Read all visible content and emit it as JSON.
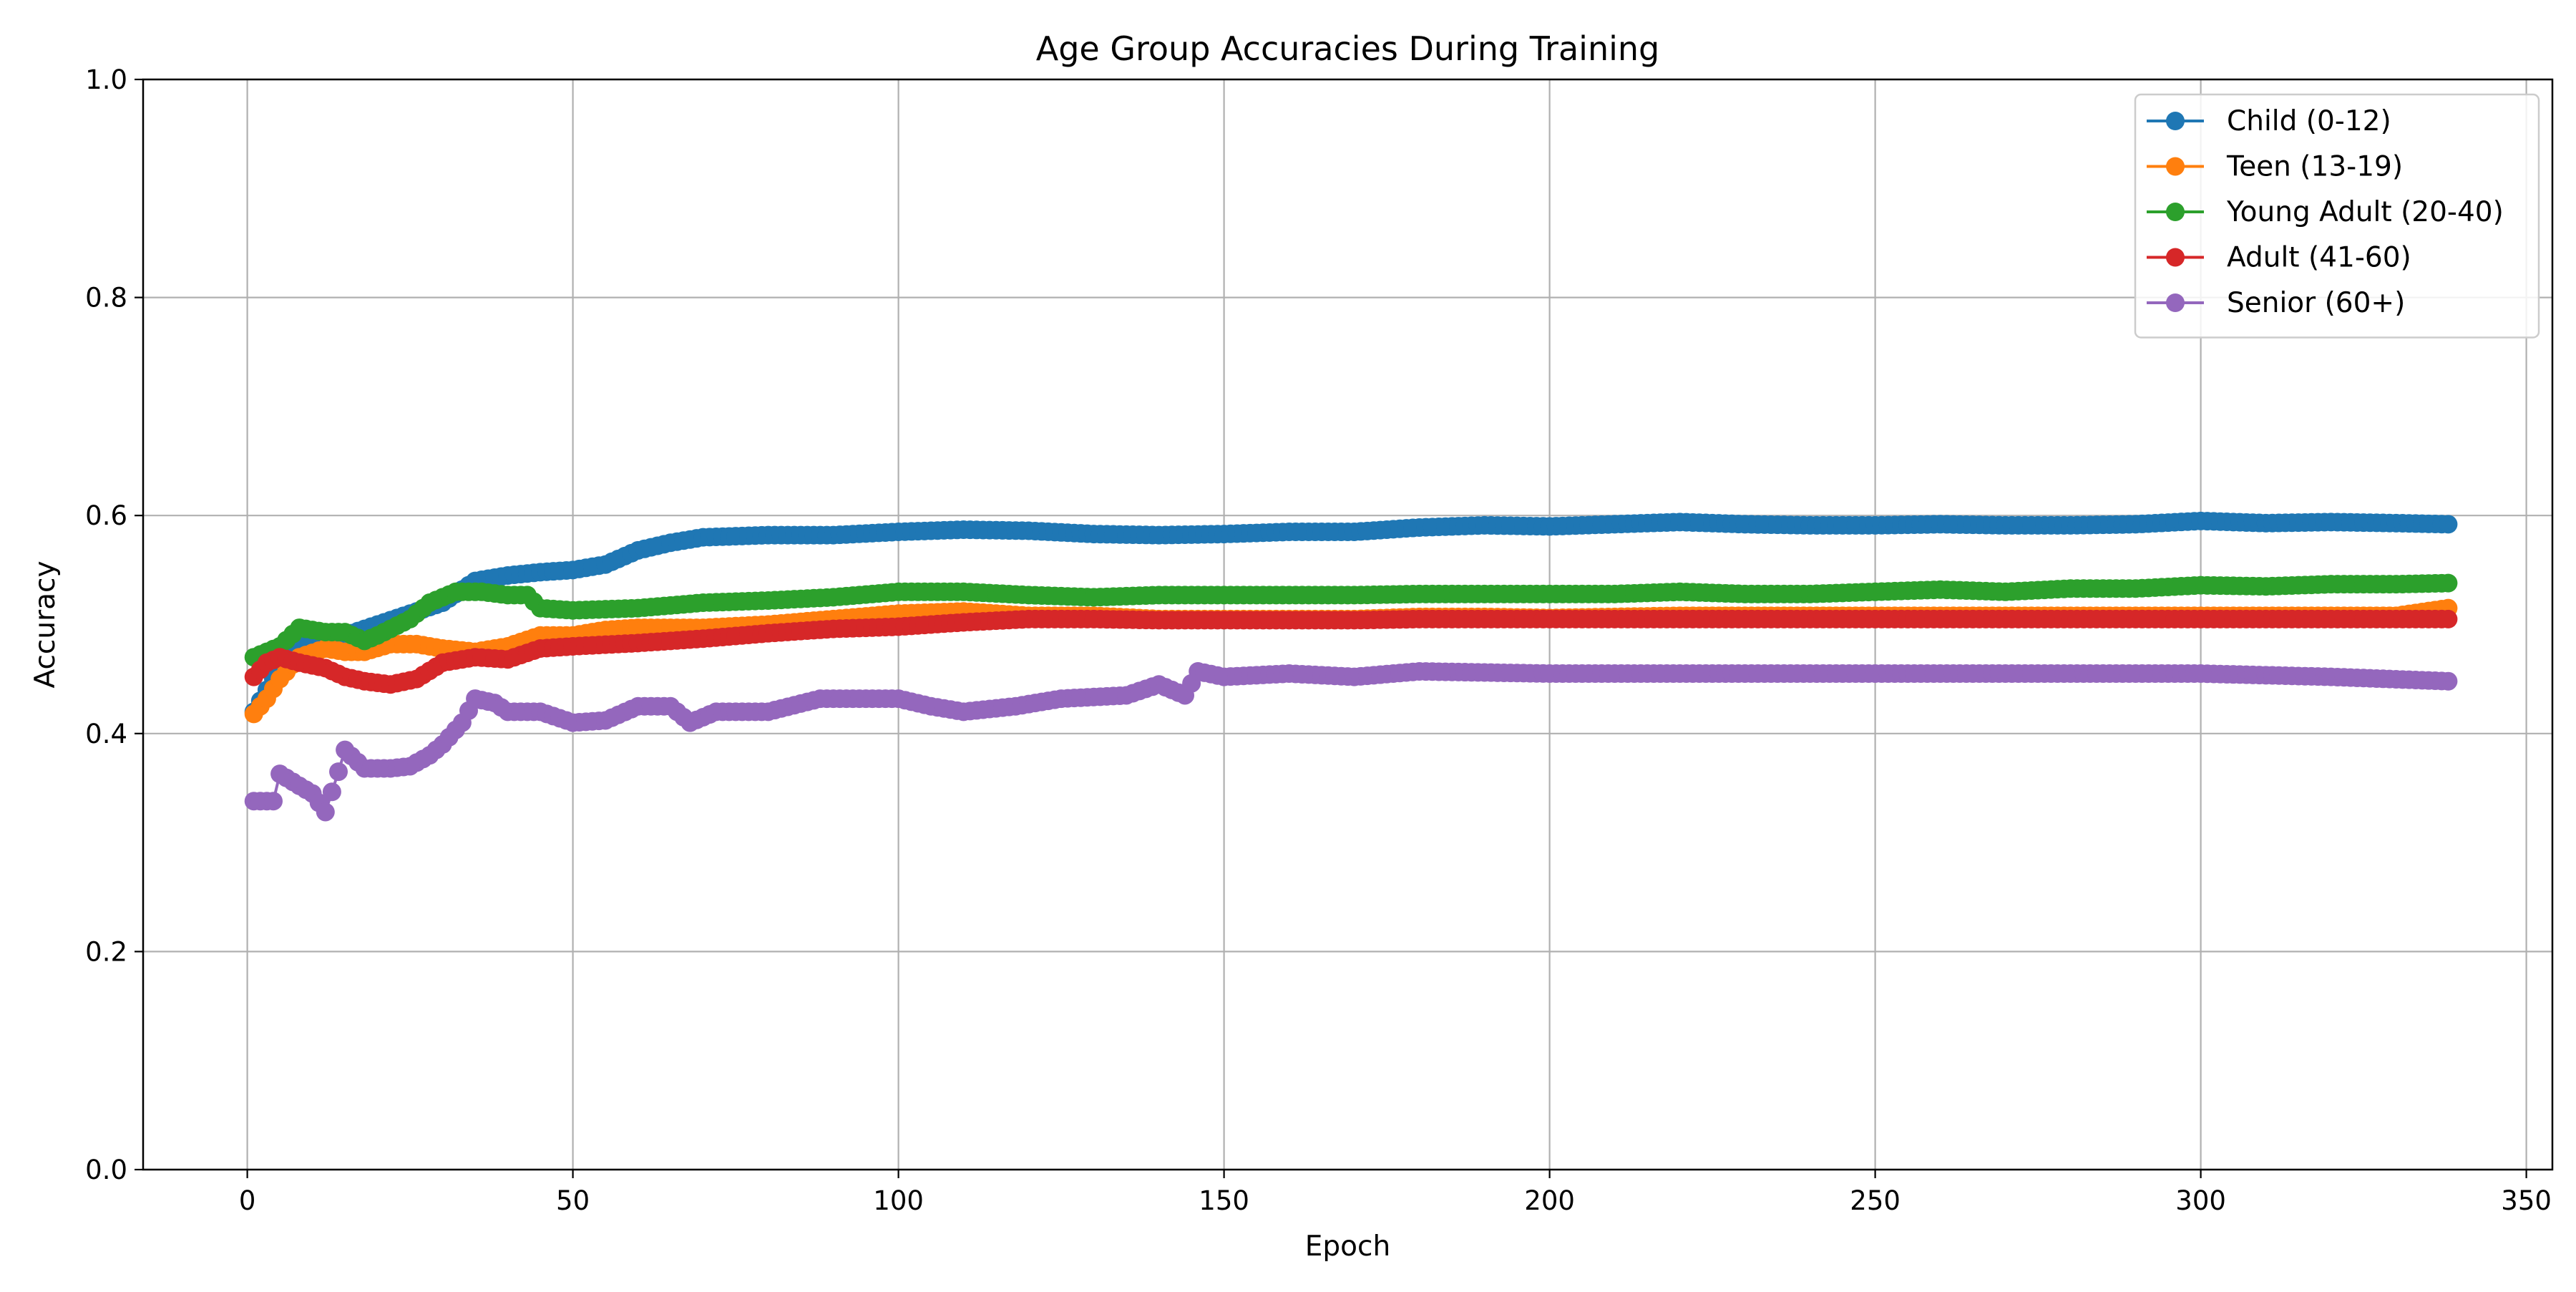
{
  "chart_data": {
    "type": "line",
    "title": "Age Group Accuracies During Training",
    "xlabel": "Epoch",
    "ylabel": "Accuracy",
    "xlim": [
      -16,
      354
    ],
    "ylim": [
      0.0,
      1.0
    ],
    "xticks": [
      0,
      50,
      100,
      150,
      200,
      250,
      300,
      350
    ],
    "yticks": [
      0.0,
      0.2,
      0.4,
      0.6,
      0.8,
      1.0
    ],
    "xtick_labels": [
      "0",
      "50",
      "100",
      "150",
      "200",
      "250",
      "300",
      "350"
    ],
    "ytick_labels": [
      "0.0",
      "0.2",
      "0.4",
      "0.6",
      "0.8",
      "1.0"
    ],
    "grid": true,
    "legend_position": "top-right",
    "markers": true,
    "series": [
      {
        "name": "Child (0-12)",
        "color": "#1f77b4",
        "points": [
          [
            1,
            0.42
          ],
          [
            5,
            0.46
          ],
          [
            10,
            0.49
          ],
          [
            15,
            0.49
          ],
          [
            20,
            0.5
          ],
          [
            25,
            0.51
          ],
          [
            30,
            0.52
          ],
          [
            35,
            0.54
          ],
          [
            40,
            0.545
          ],
          [
            45,
            0.548
          ],
          [
            50,
            0.55
          ],
          [
            55,
            0.555
          ],
          [
            60,
            0.568
          ],
          [
            65,
            0.575
          ],
          [
            70,
            0.58
          ],
          [
            80,
            0.582
          ],
          [
            90,
            0.582
          ],
          [
            100,
            0.585
          ],
          [
            110,
            0.587
          ],
          [
            120,
            0.586
          ],
          [
            130,
            0.583
          ],
          [
            140,
            0.582
          ],
          [
            150,
            0.583
          ],
          [
            160,
            0.585
          ],
          [
            170,
            0.585
          ],
          [
            180,
            0.589
          ],
          [
            190,
            0.591
          ],
          [
            200,
            0.59
          ],
          [
            210,
            0.592
          ],
          [
            220,
            0.594
          ],
          [
            230,
            0.592
          ],
          [
            240,
            0.591
          ],
          [
            250,
            0.591
          ],
          [
            260,
            0.592
          ],
          [
            270,
            0.591
          ],
          [
            280,
            0.591
          ],
          [
            290,
            0.592
          ],
          [
            300,
            0.595
          ],
          [
            310,
            0.593
          ],
          [
            320,
            0.594
          ],
          [
            330,
            0.593
          ],
          [
            338,
            0.592
          ]
        ]
      },
      {
        "name": "Teen (13-19)",
        "color": "#ff7f0e",
        "points": [
          [
            1,
            0.418
          ],
          [
            3,
            0.432
          ],
          [
            5,
            0.45
          ],
          [
            8,
            0.47
          ],
          [
            12,
            0.478
          ],
          [
            15,
            0.475
          ],
          [
            18,
            0.475
          ],
          [
            22,
            0.482
          ],
          [
            26,
            0.482
          ],
          [
            30,
            0.478
          ],
          [
            35,
            0.475
          ],
          [
            40,
            0.48
          ],
          [
            45,
            0.49
          ],
          [
            50,
            0.49
          ],
          [
            55,
            0.495
          ],
          [
            60,
            0.497
          ],
          [
            70,
            0.497
          ],
          [
            80,
            0.5
          ],
          [
            90,
            0.505
          ],
          [
            100,
            0.51
          ],
          [
            110,
            0.512
          ],
          [
            120,
            0.508
          ],
          [
            130,
            0.508
          ],
          [
            140,
            0.505
          ],
          [
            150,
            0.505
          ],
          [
            160,
            0.505
          ],
          [
            170,
            0.505
          ],
          [
            180,
            0.507
          ],
          [
            190,
            0.507
          ],
          [
            200,
            0.506
          ],
          [
            210,
            0.507
          ],
          [
            220,
            0.508
          ],
          [
            230,
            0.508
          ],
          [
            240,
            0.508
          ],
          [
            250,
            0.508
          ],
          [
            260,
            0.508
          ],
          [
            270,
            0.508
          ],
          [
            280,
            0.508
          ],
          [
            290,
            0.508
          ],
          [
            300,
            0.508
          ],
          [
            310,
            0.508
          ],
          [
            320,
            0.508
          ],
          [
            330,
            0.508
          ],
          [
            338,
            0.515
          ]
        ]
      },
      {
        "name": "Young Adult (20-40)",
        "color": "#2ca02c",
        "points": [
          [
            1,
            0.47
          ],
          [
            3,
            0.475
          ],
          [
            5,
            0.48
          ],
          [
            8,
            0.497
          ],
          [
            12,
            0.493
          ],
          [
            15,
            0.493
          ],
          [
            18,
            0.485
          ],
          [
            20,
            0.49
          ],
          [
            25,
            0.505
          ],
          [
            28,
            0.52
          ],
          [
            32,
            0.53
          ],
          [
            36,
            0.53
          ],
          [
            40,
            0.527
          ],
          [
            43,
            0.527
          ],
          [
            45,
            0.515
          ],
          [
            50,
            0.513
          ],
          [
            60,
            0.515
          ],
          [
            70,
            0.52
          ],
          [
            80,
            0.522
          ],
          [
            90,
            0.525
          ],
          [
            100,
            0.53
          ],
          [
            110,
            0.53
          ],
          [
            120,
            0.527
          ],
          [
            130,
            0.525
          ],
          [
            140,
            0.527
          ],
          [
            150,
            0.527
          ],
          [
            160,
            0.527
          ],
          [
            170,
            0.527
          ],
          [
            180,
            0.528
          ],
          [
            190,
            0.528
          ],
          [
            200,
            0.528
          ],
          [
            210,
            0.528
          ],
          [
            220,
            0.53
          ],
          [
            230,
            0.528
          ],
          [
            240,
            0.528
          ],
          [
            250,
            0.53
          ],
          [
            260,
            0.532
          ],
          [
            270,
            0.53
          ],
          [
            280,
            0.533
          ],
          [
            290,
            0.533
          ],
          [
            300,
            0.536
          ],
          [
            310,
            0.535
          ],
          [
            320,
            0.537
          ],
          [
            330,
            0.537
          ],
          [
            338,
            0.538
          ]
        ]
      },
      {
        "name": "Adult (41-60)",
        "color": "#d62728",
        "points": [
          [
            1,
            0.452
          ],
          [
            3,
            0.465
          ],
          [
            5,
            0.47
          ],
          [
            8,
            0.465
          ],
          [
            12,
            0.46
          ],
          [
            15,
            0.452
          ],
          [
            18,
            0.448
          ],
          [
            22,
            0.445
          ],
          [
            26,
            0.45
          ],
          [
            30,
            0.465
          ],
          [
            35,
            0.47
          ],
          [
            40,
            0.468
          ],
          [
            45,
            0.478
          ],
          [
            50,
            0.48
          ],
          [
            60,
            0.483
          ],
          [
            70,
            0.487
          ],
          [
            80,
            0.492
          ],
          [
            90,
            0.496
          ],
          [
            100,
            0.498
          ],
          [
            110,
            0.502
          ],
          [
            120,
            0.505
          ],
          [
            130,
            0.505
          ],
          [
            140,
            0.504
          ],
          [
            150,
            0.504
          ],
          [
            160,
            0.504
          ],
          [
            170,
            0.504
          ],
          [
            180,
            0.505
          ],
          [
            190,
            0.505
          ],
          [
            200,
            0.505
          ],
          [
            210,
            0.505
          ],
          [
            220,
            0.505
          ],
          [
            230,
            0.505
          ],
          [
            240,
            0.505
          ],
          [
            250,
            0.505
          ],
          [
            260,
            0.505
          ],
          [
            270,
            0.505
          ],
          [
            280,
            0.505
          ],
          [
            290,
            0.505
          ],
          [
            300,
            0.505
          ],
          [
            310,
            0.505
          ],
          [
            320,
            0.505
          ],
          [
            330,
            0.505
          ],
          [
            338,
            0.505
          ]
        ]
      },
      {
        "name": "Senior (60+)",
        "color": "#9467bd",
        "points": [
          [
            1,
            0.338
          ],
          [
            4,
            0.338
          ],
          [
            5,
            0.363
          ],
          [
            8,
            0.352
          ],
          [
            10,
            0.345
          ],
          [
            12,
            0.328
          ],
          [
            14,
            0.365
          ],
          [
            15,
            0.385
          ],
          [
            18,
            0.368
          ],
          [
            22,
            0.368
          ],
          [
            25,
            0.37
          ],
          [
            28,
            0.38
          ],
          [
            30,
            0.39
          ],
          [
            33,
            0.41
          ],
          [
            35,
            0.432
          ],
          [
            38,
            0.428
          ],
          [
            40,
            0.42
          ],
          [
            45,
            0.42
          ],
          [
            50,
            0.41
          ],
          [
            55,
            0.412
          ],
          [
            60,
            0.425
          ],
          [
            65,
            0.425
          ],
          [
            68,
            0.41
          ],
          [
            72,
            0.42
          ],
          [
            80,
            0.42
          ],
          [
            88,
            0.432
          ],
          [
            95,
            0.432
          ],
          [
            100,
            0.432
          ],
          [
            105,
            0.425
          ],
          [
            110,
            0.42
          ],
          [
            118,
            0.425
          ],
          [
            125,
            0.432
          ],
          [
            135,
            0.435
          ],
          [
            140,
            0.445
          ],
          [
            144,
            0.435
          ],
          [
            146,
            0.457
          ],
          [
            150,
            0.452
          ],
          [
            160,
            0.455
          ],
          [
            170,
            0.452
          ],
          [
            180,
            0.457
          ],
          [
            200,
            0.455
          ],
          [
            220,
            0.455
          ],
          [
            240,
            0.455
          ],
          [
            260,
            0.455
          ],
          [
            280,
            0.455
          ],
          [
            300,
            0.455
          ],
          [
            320,
            0.452
          ],
          [
            338,
            0.448
          ]
        ]
      }
    ]
  }
}
